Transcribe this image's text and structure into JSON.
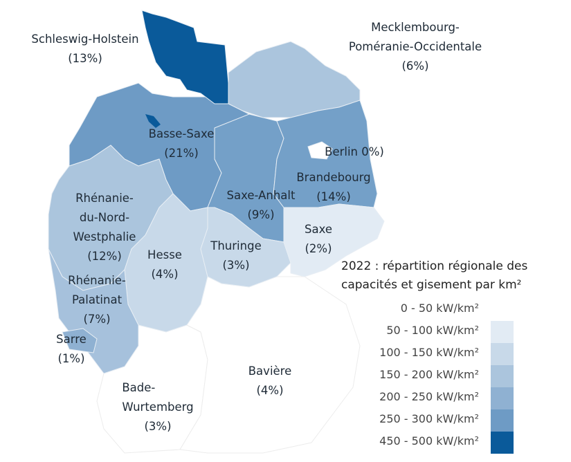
{
  "legend": {
    "title_line1": "2022 : répartition régionale des",
    "title_line2": "capacités et gisement par km²",
    "classes": [
      {
        "label": "0 - 50 kW/km²",
        "color": "#ffffff"
      },
      {
        "label": "50 - 100 kW/km²",
        "color": "#e2ebf4"
      },
      {
        "label": "100 - 150 kW/km²",
        "color": "#c8d9e9"
      },
      {
        "label": "150 - 200 kW/km²",
        "color": "#abc5dd"
      },
      {
        "label": "200 - 250 kW/km²",
        "color": "#8fb1d2"
      },
      {
        "label": "250 - 300 kW/km²",
        "color": "#6e9bc5"
      },
      {
        "label": "450 - 500 kW/km²",
        "color": "#0a5a9a"
      }
    ]
  },
  "regions": [
    {
      "id": "schleswig-holstein",
      "name": "Schleswig-Holstein",
      "share": "(13%)",
      "color": "#0a5a9a"
    },
    {
      "id": "mecklembourg",
      "name_line1": "Mecklembourg-",
      "name_line2": "Poméranie-Occidentale",
      "share": "(6%)",
      "color": "#abc5dd"
    },
    {
      "id": "basse-saxe",
      "name": "Basse-Saxe",
      "share": "(21%)",
      "color": "#6e9bc5"
    },
    {
      "id": "berlin",
      "name": "Berlin 0%)",
      "color": "#ffffff"
    },
    {
      "id": "brandebourg",
      "name": "Brandebourg",
      "share": "(14%)",
      "color": "#74a0c8"
    },
    {
      "id": "saxe-anhalt",
      "name": "Saxe-Anhalt",
      "share": "(9%)",
      "color": "#74a0c8"
    },
    {
      "id": "nrw",
      "name_line1": "Rhénanie-",
      "name_line2": "du-Nord-",
      "name_line3": "Westphalie",
      "share": "(12%)",
      "color": "#abc5dd"
    },
    {
      "id": "hesse",
      "name": "Hesse",
      "share": "(4%)",
      "color": "#c8d9e9"
    },
    {
      "id": "thuringe",
      "name": "Thuringe",
      "share": "(3%)",
      "color": "#c8d9e9"
    },
    {
      "id": "saxe",
      "name": "Saxe",
      "share": "(2%)",
      "color": "#e2ebf4"
    },
    {
      "id": "rhenanie-palatinat",
      "name_line1": "Rhénanie-",
      "name_line2": "Palatinat",
      "share": "(7%)",
      "color": "#a6c1dc"
    },
    {
      "id": "sarre",
      "name": "Sarre",
      "share": "(1%)",
      "color": "#8fb1d2"
    },
    {
      "id": "bade-wurtemberg",
      "name_line1": "Bade-",
      "name_line2": "Wurtemberg",
      "share": "(3%)",
      "color": "#ffffff"
    },
    {
      "id": "baviere",
      "name": "Bavière",
      "share": "(4%)",
      "color": "#ffffff"
    }
  ]
}
